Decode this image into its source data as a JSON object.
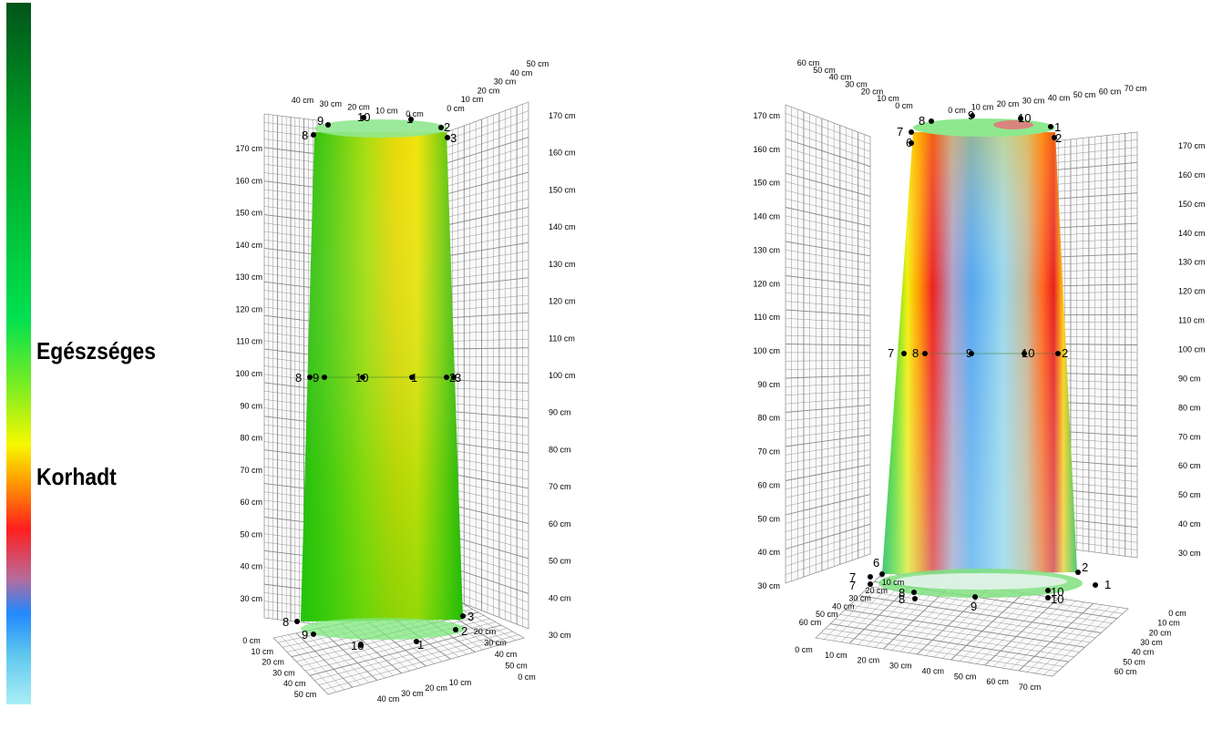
{
  "legend": {
    "labels": {
      "healthy": "Egészséges",
      "decayed": "Korhadt"
    },
    "colors": [
      "#00551a",
      "#00a626",
      "#00e050",
      "#80ee20",
      "#f8f800",
      "#ffa000",
      "#ff1e1e",
      "#b86a9a",
      "#2288ff",
      "#60c8ee",
      "#aaeef5"
    ]
  },
  "left_model": {
    "height_ticks_left": [
      "30 cm",
      "40 cm",
      "50 cm",
      "60 cm",
      "70 cm",
      "80 cm",
      "90 cm",
      "100 cm",
      "110 cm",
      "120 cm",
      "130 cm",
      "140 cm",
      "150 cm",
      "160 cm",
      "170 cm"
    ],
    "height_ticks_right": [
      "30 cm",
      "40 cm",
      "50 cm",
      "60 cm",
      "70 cm",
      "80 cm",
      "90 cm",
      "100 cm",
      "110 cm",
      "120 cm",
      "130 cm",
      "140 cm",
      "150 cm",
      "160 cm",
      "170 cm"
    ],
    "top_ticks_a": [
      "40 cm",
      "30 cm",
      "20 cm",
      "10 cm",
      "0 cm"
    ],
    "top_ticks_b": [
      "0 cm",
      "10 cm",
      "20 cm",
      "30 cm",
      "40 cm",
      "50 cm"
    ],
    "floor_ticks_left": [
      "0 cm",
      "10 cm",
      "20 cm",
      "30 cm",
      "40 cm",
      "50 cm"
    ],
    "floor_ticks_bottom": [
      "40 cm",
      "30 cm",
      "20 cm",
      "10 cm"
    ],
    "floor_ticks_right": [
      "20 cm",
      "30 cm",
      "40 cm",
      "50 cm",
      "0 cm"
    ],
    "sensor_points": [
      "1",
      "2",
      "3",
      "8",
      "9",
      "10"
    ]
  },
  "right_model": {
    "height_ticks_left": [
      "30 cm",
      "40 cm",
      "50 cm",
      "60 cm",
      "70 cm",
      "80 cm",
      "90 cm",
      "100 cm",
      "110 cm",
      "120 cm",
      "130 cm",
      "140 cm",
      "150 cm",
      "160 cm",
      "170 cm"
    ],
    "height_ticks_right": [
      "30 cm",
      "40 cm",
      "50 cm",
      "60 cm",
      "70 cm",
      "80 cm",
      "90 cm",
      "100 cm",
      "110 cm",
      "120 cm",
      "130 cm",
      "140 cm",
      "150 cm",
      "160 cm",
      "170 cm"
    ],
    "top_ticks_a": [
      "60 cm",
      "50 cm",
      "40 cm",
      "30 cm",
      "20 cm",
      "10 cm",
      "0 cm"
    ],
    "top_ticks_b": [
      "0 cm",
      "10 cm",
      "20 cm",
      "30 cm",
      "40 cm",
      "50 cm",
      "60 cm",
      "70 cm"
    ],
    "floor_ticks_left": [
      "60 cm",
      "50 cm",
      "40 cm",
      "30 cm",
      "20 cm",
      "10 cm"
    ],
    "floor_ticks_bottom": [
      "0 cm",
      "10 cm",
      "20 cm",
      "30 cm",
      "40 cm",
      "50 cm",
      "60 cm",
      "70 cm"
    ],
    "floor_ticks_right": [
      "0 cm",
      "10 cm",
      "20 cm",
      "30 cm",
      "40 cm",
      "50 cm",
      "60 cm"
    ],
    "sensor_points": [
      "1",
      "2",
      "6",
      "7",
      "8",
      "9",
      "10"
    ]
  }
}
